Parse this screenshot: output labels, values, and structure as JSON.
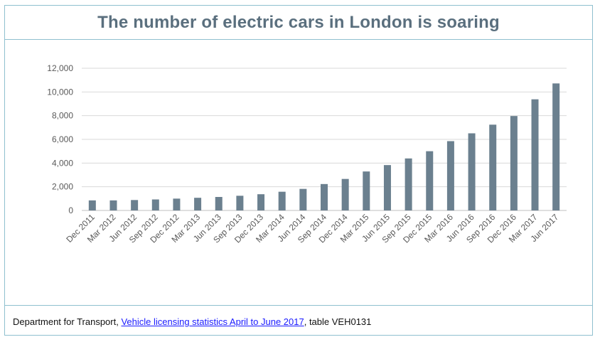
{
  "chart_data": {
    "type": "bar",
    "title": "The number of electric cars in London is soaring",
    "categories": [
      "Dec 2011",
      "Mar 2012",
      "Jun 2012",
      "Sep 2012",
      "Dec 2012",
      "Mar 2013",
      "Jun 2013",
      "Sep 2013",
      "Dec 2013",
      "Mar 2014",
      "Jun 2014",
      "Sep 2014",
      "Dec 2014",
      "Mar 2015",
      "Jun 2015",
      "Sep 2015",
      "Dec 2015",
      "Mar 2016",
      "Jun 2016",
      "Sep 2016",
      "Dec 2016",
      "Mar 2017",
      "Jun 2017"
    ],
    "values": [
      850,
      850,
      880,
      930,
      1000,
      1070,
      1140,
      1240,
      1370,
      1580,
      1820,
      2230,
      2660,
      3290,
      3830,
      4390,
      5000,
      5850,
      6510,
      7240,
      7970,
      9380,
      10720
    ],
    "ylim": [
      0,
      12000
    ],
    "yticks": [
      0,
      2000,
      4000,
      6000,
      8000,
      10000,
      12000
    ],
    "ytick_labels": [
      "0",
      "2,000",
      "4,000",
      "6,000",
      "8,000",
      "10,000",
      "12,000"
    ],
    "xlabel": "",
    "ylabel": "",
    "grid": true,
    "bar_color": "#6b808f"
  },
  "footer": {
    "prefix": "Department for Transport, ",
    "link_text": "Vehicle licensing statistics April to June 2017",
    "suffix": ", table VEH0131"
  }
}
